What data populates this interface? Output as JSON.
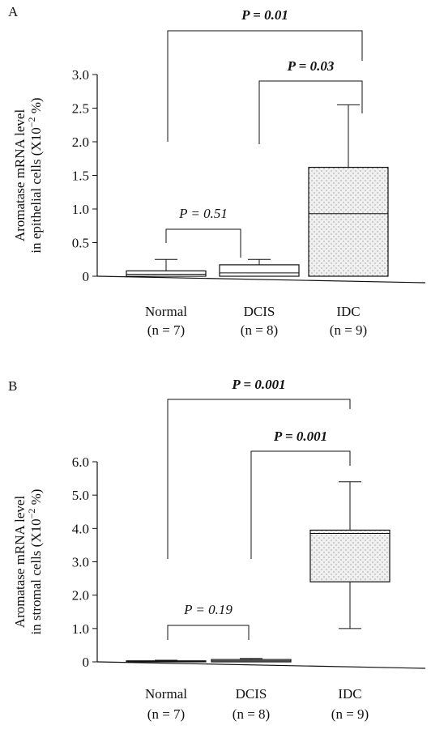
{
  "chart_data": [
    {
      "type": "box",
      "panel_label": "A",
      "ylabel": {
        "line1": "Aromatase mRNA level",
        "line2": "in epithelial cells (X10",
        "exponent": "−2",
        "unit": " %)"
      },
      "categories": [
        "Normal",
        "DCIS",
        "IDC"
      ],
      "n_labels": [
        "(n = 7)",
        "(n = 8)",
        "(n = 9)"
      ],
      "boxes": [
        {
          "min": 0,
          "q1": 0,
          "median": 0.03,
          "q3": 0.08,
          "max": 0.25
        },
        {
          "min": 0,
          "q1": 0,
          "median": 0.05,
          "q3": 0.17,
          "max": 0.25
        },
        {
          "min": 0,
          "q1": 0,
          "median": 0.93,
          "q3": 1.62,
          "max": 2.55
        }
      ],
      "comparisons": [
        "P = 0.01",
        "P = 0.03",
        "P = 0.51"
      ],
      "ylim": [
        0,
        3
      ],
      "yticks": [
        0,
        0.5,
        {
          "value": 1,
          "label": "1.0"
        },
        1.5,
        {
          "value": 2,
          "label": "2.0"
        },
        2.5,
        {
          "value": 3,
          "label": "3.0"
        }
      ]
    },
    {
      "type": "box",
      "panel_label": "B",
      "ylabel": {
        "line1": "Aromatase mRNA level",
        "line2": "in stromal cells (X10",
        "exponent": "−2",
        "unit": " %)"
      },
      "categories": [
        "Normal",
        "DCIS",
        "IDC"
      ],
      "n_labels": [
        "(n = 7)",
        "(n = 8)",
        "(n = 9)"
      ],
      "boxes": [
        {
          "min": 0,
          "q1": 0,
          "median": 0.02,
          "q3": 0.03,
          "max": 0.05
        },
        {
          "min": 0,
          "q1": 0,
          "median": 0.03,
          "q3": 0.07,
          "max": 0.1
        },
        {
          "min": 1,
          "q1": 2.4,
          "median": 3.85,
          "q3": 3.95,
          "max": 5.4
        }
      ],
      "comparisons": [
        "P = 0.001",
        "P = 0.001",
        "P = 0.19"
      ],
      "ylim": [
        0,
        6
      ],
      "yticks": [
        0,
        {
          "value": 1,
          "label": "1.0"
        },
        {
          "value": 2,
          "label": "2.0"
        },
        {
          "value": 3,
          "label": "3.0"
        },
        {
          "value": 4,
          "label": "4.0"
        },
        {
          "value": 5,
          "label": "5.0"
        },
        {
          "value": 6,
          "label": "6.0"
        }
      ]
    }
  ]
}
